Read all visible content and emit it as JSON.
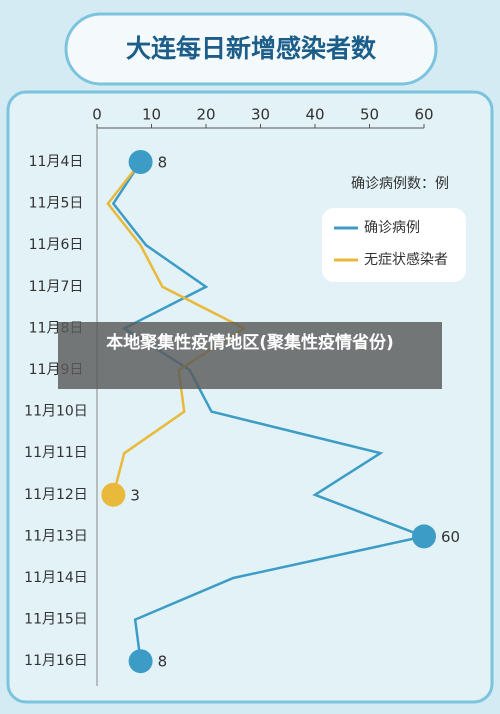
{
  "chart_data": {
    "type": "line",
    "title": "大连每日新增感染者数",
    "categories": [
      "11月4日",
      "11月5日",
      "11月6日",
      "11月7日",
      "11月8日",
      "11月9日",
      "11月10日",
      "11月11日",
      "11月12日",
      "11月13日",
      "11月14日",
      "11月15日",
      "11月16日"
    ],
    "legend_title": "确诊病例数：例",
    "series": [
      {
        "name": "确诊病例",
        "color": "#3d9cc6",
        "values": [
          8,
          3,
          9,
          20,
          5,
          17,
          21,
          52,
          40,
          60,
          25,
          7,
          8
        ],
        "labeled_indices": [
          0,
          9,
          12
        ]
      },
      {
        "name": "无症状感染者",
        "color": "#e8b93a",
        "values": [
          8,
          2,
          8,
          12,
          27,
          15,
          16,
          5,
          3,
          null,
          null,
          null,
          null
        ],
        "labeled_indices": [
          8
        ]
      }
    ],
    "xlim": [
      0,
      60
    ],
    "xticks": [
      0,
      10,
      20,
      30,
      40,
      50,
      60
    ],
    "grid": false,
    "legend_position": "upper right"
  },
  "banner": "本地聚集性疫情地区(聚集性疫情省份)"
}
